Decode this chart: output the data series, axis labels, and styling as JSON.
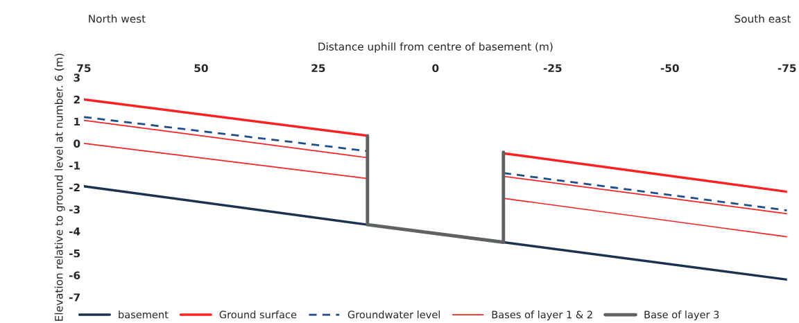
{
  "chart_data": {
    "type": "line",
    "xlabel": "Distance uphill from centre of basement (m)",
    "ylabel": "Elevation relative to ground level at number. 6 (m)",
    "annotations": [
      "North west",
      "South east"
    ],
    "xlim": [
      75,
      -75
    ],
    "xticks": [
      75,
      50,
      25,
      0,
      -25,
      -50,
      -75
    ],
    "ylim": [
      -7,
      3
    ],
    "yticks": [
      -7,
      -6,
      -5,
      -4,
      -3,
      -2,
      -1,
      0,
      1,
      2,
      3
    ],
    "grid": false,
    "legend": "bottom",
    "marker": "none",
    "series": [
      {
        "name": "basement",
        "color": "#1b3350",
        "line_style": "solid",
        "x": [
          75,
          14.5,
          -14.5,
          -75
        ],
        "values": [
          -1.95,
          -3.7,
          -4.5,
          -6.2
        ]
      },
      {
        "name": "Ground surface",
        "color": "#ff2020",
        "line_style": "solid",
        "x": [
          75,
          14.5,
          0,
          -14.5,
          -75
        ],
        "values": [
          2.0,
          0.35,
          null,
          -0.45,
          -2.2
        ]
      },
      {
        "name": "Groundwater level",
        "color": "#1f4e8c",
        "line_style": "dashed",
        "x": [
          75,
          14.5,
          0,
          -14.5,
          -75
        ],
        "values": [
          1.2,
          -0.35,
          null,
          -1.35,
          -3.05
        ]
      },
      {
        "name": "Bases of layer 1 & 2",
        "color": "#ff2020",
        "line_style": "solid",
        "x": [
          75,
          14.5,
          0,
          -14.5,
          -75
        ],
        "values": [
          1.05,
          -0.65,
          null,
          -1.5,
          -3.2
        ]
      },
      {
        "color": "#ff2020",
        "line_style": "solid",
        "x": [
          75,
          14.5,
          0,
          -14.5,
          -75
        ],
        "values": [
          0.0,
          -1.6,
          null,
          -2.5,
          -4.25
        ]
      },
      {
        "name": "Base of layer 3",
        "color": "#5f6262",
        "line_style": "solid",
        "x": [
          14.5,
          14.5,
          -14.5,
          -14.5
        ],
        "values": [
          0.35,
          -3.7,
          -4.5,
          -0.4
        ]
      }
    ]
  }
}
